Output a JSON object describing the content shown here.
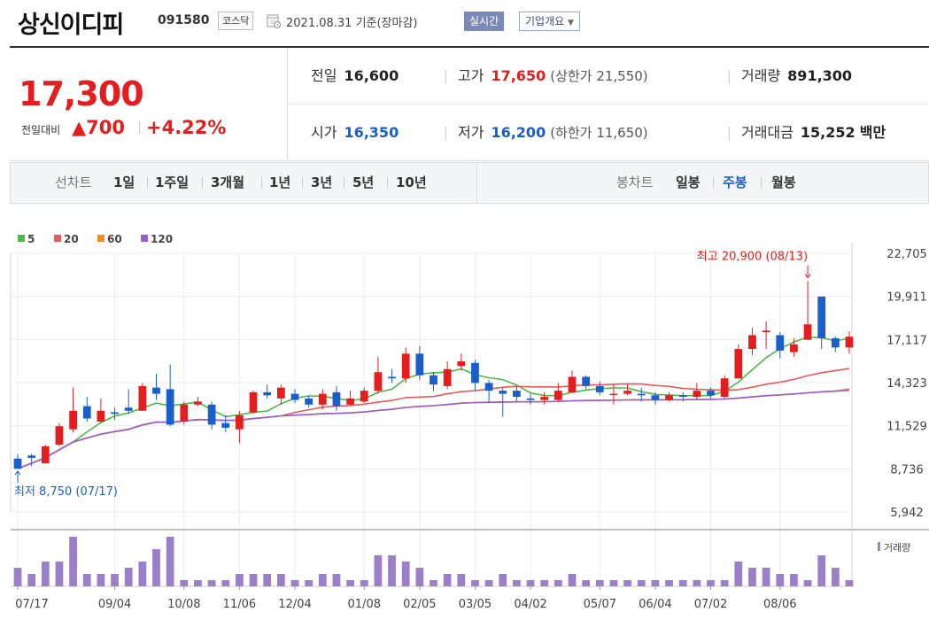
{
  "header": {
    "company_name": "상신이디피",
    "code": "091580",
    "market": "코스닥",
    "date": "2021.08.31 기준(장마감)",
    "realtime_label": "실시간",
    "overview_label": "기업개요",
    "calendar_icon": "calendar-icon"
  },
  "quote": {
    "price": "17,300",
    "change_label": "전일대비",
    "change_value": "▲700",
    "change_pct": "+4.22%",
    "prev_label": "전일",
    "prev": "16,600",
    "high_label": "고가",
    "high": "17,650",
    "upper_limit": "(상한가 21,550)",
    "volume_label": "거래량",
    "volume": "891,300",
    "open_label": "시가",
    "open": "16,350",
    "low_label": "저가",
    "low": "16,200",
    "lower_limit": "(하한가 11,650)",
    "amount_label": "거래대금",
    "amount_value": "15,252",
    "amount_unit": "백만",
    "up_color": "#e41e1e",
    "down_color": "#1a5fc9"
  },
  "period_bar": {
    "line_label": "선차트",
    "line_options": [
      "1일",
      "1주일",
      "3개월",
      "1년",
      "3년",
      "5년",
      "10년"
    ],
    "candle_label": "봉차트",
    "candle_options": [
      "일봉",
      "주봉",
      "월봉"
    ],
    "selected_candle": "주봉"
  },
  "chart_data": {
    "type": "candlestick",
    "legend": [
      {
        "name": "5",
        "color": "#4cb848"
      },
      {
        "name": "20",
        "color": "#e85a5a"
      },
      {
        "name": "60",
        "color": "#f28c28"
      },
      {
        "name": "120",
        "color": "#9a5cd0"
      }
    ],
    "y_ticks": [
      "22,705",
      "19,911",
      "17,117",
      "14,323",
      "11,529",
      "8,736",
      "5,942"
    ],
    "ylim": [
      5942,
      22705
    ],
    "x_labels": [
      {
        "label": "07/17",
        "index": 0
      },
      {
        "label": "09/04",
        "index": 7
      },
      {
        "label": "10/08",
        "index": 12
      },
      {
        "label": "11/06",
        "index": 16
      },
      {
        "label": "12/04",
        "index": 20
      },
      {
        "label": "01/08",
        "index": 25
      },
      {
        "label": "02/05",
        "index": 29
      },
      {
        "label": "03/05",
        "index": 33
      },
      {
        "label": "04/02",
        "index": 37
      },
      {
        "label": "05/07",
        "index": 42
      },
      {
        "label": "06/04",
        "index": 46
      },
      {
        "label": "07/02",
        "index": 50
      },
      {
        "label": "08/06",
        "index": 55
      }
    ],
    "candles": [
      [
        9400,
        8750,
        9700,
        8750
      ],
      [
        9600,
        9450,
        9700,
        8900
      ],
      [
        9100,
        10200,
        10300,
        9100
      ],
      [
        10300,
        11500,
        11700,
        10200
      ],
      [
        11300,
        12500,
        14000,
        11100
      ],
      [
        12800,
        12000,
        13400,
        11800
      ],
      [
        11800,
        12500,
        13300,
        11700
      ],
      [
        12400,
        12300,
        12700,
        11900
      ],
      [
        12700,
        12500,
        13900,
        12300
      ],
      [
        12500,
        14100,
        14300,
        12500
      ],
      [
        14000,
        13600,
        14900,
        13200
      ],
      [
        13900,
        11600,
        15500,
        11500
      ],
      [
        11800,
        12900,
        13100,
        11600
      ],
      [
        12900,
        13100,
        13400,
        12800
      ],
      [
        12900,
        11600,
        13100,
        11300
      ],
      [
        11700,
        11400,
        12200,
        11100
      ],
      [
        11300,
        12200,
        12500,
        10400
      ],
      [
        12400,
        13700,
        13800,
        12300
      ],
      [
        13700,
        13500,
        14200,
        13300
      ],
      [
        13300,
        14000,
        14200,
        12900
      ],
      [
        13600,
        13200,
        13900,
        13000
      ],
      [
        13300,
        12900,
        13500,
        12700
      ],
      [
        12900,
        13600,
        13900,
        12600
      ],
      [
        13700,
        12800,
        14100,
        12500
      ],
      [
        12900,
        13300,
        13800,
        12800
      ],
      [
        13100,
        13800,
        14000,
        13000
      ],
      [
        13800,
        15000,
        16000,
        13600
      ],
      [
        14700,
        14600,
        15200,
        14300
      ],
      [
        14600,
        16200,
        16600,
        14300
      ],
      [
        16200,
        14800,
        16700,
        14500
      ],
      [
        14800,
        14200,
        15000,
        13800
      ],
      [
        14100,
        15200,
        15700,
        13900
      ],
      [
        15400,
        15700,
        16200,
        15100
      ],
      [
        15600,
        14300,
        15800,
        13800
      ],
      [
        14300,
        13800,
        14500,
        13000
      ],
      [
        13800,
        13600,
        14000,
        12100
      ],
      [
        13800,
        13400,
        14100,
        13100
      ],
      [
        13300,
        13200,
        13600,
        12900
      ],
      [
        13200,
        13400,
        13700,
        12900
      ],
      [
        13200,
        13800,
        14300,
        13100
      ],
      [
        13700,
        14700,
        15100,
        13700
      ],
      [
        14700,
        14100,
        14800,
        13900
      ],
      [
        14100,
        13700,
        14400,
        13500
      ],
      [
        13600,
        13600,
        14200,
        12900
      ],
      [
        13600,
        13800,
        14200,
        13500
      ],
      [
        13600,
        13500,
        14000,
        13100
      ],
      [
        13500,
        13200,
        13700,
        12900
      ],
      [
        13200,
        13500,
        13700,
        13100
      ],
      [
        13500,
        13400,
        13700,
        13100
      ],
      [
        13400,
        13800,
        14300,
        13200
      ],
      [
        13800,
        13500,
        14000,
        13300
      ],
      [
        13400,
        14600,
        14800,
        13300
      ],
      [
        14600,
        16500,
        16800,
        14600
      ],
      [
        16500,
        17400,
        17900,
        16100
      ],
      [
        17600,
        17700,
        18300,
        16500
      ],
      [
        17400,
        16400,
        17600,
        15900
      ],
      [
        16300,
        16800,
        17200,
        16000
      ],
      [
        17100,
        18100,
        20900,
        17100
      ],
      [
        19900,
        17200,
        19900,
        16500
      ],
      [
        17200,
        16600,
        17300,
        16300
      ],
      [
        16600,
        17300,
        17650,
        16200
      ]
    ],
    "high_annotation": "최고 20,900 (08/13)",
    "low_annotation": "최저 8,750 (07/17)",
    "volume_label": "거래량",
    "volume": [
      3,
      2,
      4,
      4,
      8,
      2,
      2,
      2,
      3,
      4,
      6,
      8,
      1,
      1,
      1,
      1,
      2,
      2,
      2,
      2,
      1,
      1,
      2,
      2,
      1,
      1,
      5,
      5,
      4,
      3,
      1,
      2,
      2,
      1,
      1,
      2,
      1,
      1,
      1,
      1,
      2,
      1,
      1,
      1,
      1,
      1,
      1,
      1,
      1,
      1,
      1,
      1,
      4,
      3,
      3,
      2,
      2,
      1,
      5,
      3,
      1
    ],
    "volume_max": 8
  }
}
